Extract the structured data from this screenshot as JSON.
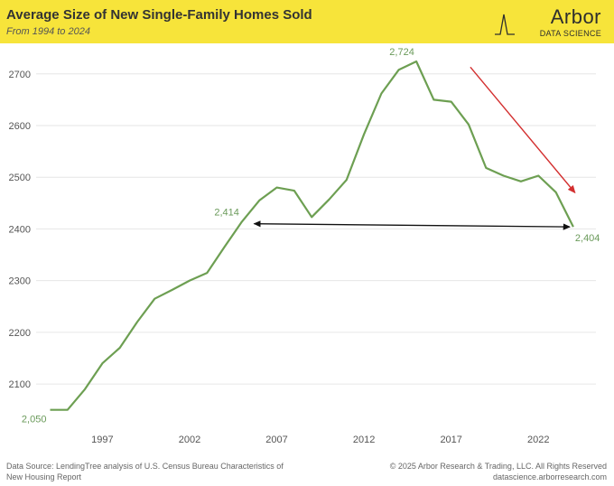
{
  "header": {
    "title": "Average Size of New Single-Family Homes Sold",
    "subtitle": "From 1994 to 2024",
    "logo_word": "Arbor",
    "logo_sub": "DATA SCIENCE"
  },
  "footer": {
    "source_line1": "Data Source: LendingTree analysis of U.S. Census Bureau Characteristics of",
    "source_line2": "New Housing Report",
    "copyright": "© 2025 Arbor Research & Trading, LLC. All Rights Reserved",
    "website": "datascience.arborresearch.com"
  },
  "colors": {
    "banner": "#f7e43a",
    "line": "#6d9f52",
    "trend_arrow": "#d32f2f",
    "range_arrow": "#111111"
  },
  "chart_data": {
    "type": "line",
    "title": "Average Size of New Single-Family Homes Sold",
    "subtitle": "From 1994 to 2024",
    "xlabel": "",
    "ylabel": "",
    "x": [
      1994,
      1995,
      1996,
      1997,
      1998,
      1999,
      2000,
      2001,
      2002,
      2003,
      2004,
      2005,
      2006,
      2007,
      2008,
      2009,
      2010,
      2011,
      2012,
      2013,
      2014,
      2015,
      2016,
      2017,
      2018,
      2019,
      2020,
      2021,
      2022,
      2023,
      2024
    ],
    "series": [
      {
        "values": [
          2050,
          2050,
          2090,
          2140,
          2170,
          2220,
          2265,
          2282,
          2300,
          2315,
          2365,
          2414,
          2455,
          2480,
          2474,
          2423,
          2457,
          2495,
          2583,
          2662,
          2708,
          2724,
          2650,
          2646,
          2602,
          2518,
          2503,
          2492,
          2503,
          2471,
          2404
        ]
      }
    ],
    "xticks": [
      1997,
      2002,
      2007,
      2012,
      2017,
      2022
    ],
    "yticks": [
      2100,
      2200,
      2300,
      2400,
      2500,
      2600,
      2700
    ],
    "xlim": [
      1993.2,
      2025.3
    ],
    "ylim": [
      2025,
      2745
    ],
    "grid": true,
    "data_labels": [
      {
        "x": 1994,
        "y": 2050,
        "text": "2,050",
        "anchor": "end",
        "dx": -4,
        "dy": 14
      },
      {
        "x": 2005,
        "y": 2414,
        "text": "2,414",
        "anchor": "end",
        "dx": -3,
        "dy": -7
      },
      {
        "x": 2015,
        "y": 2724,
        "text": "2,724",
        "anchor": "middle",
        "dx": -16,
        "dy": -7
      },
      {
        "x": 2024,
        "y": 2404,
        "text": "2,404",
        "anchor": "start",
        "dx": 2,
        "dy": 16
      }
    ],
    "annotations": [
      {
        "type": "double-arrow",
        "from": [
          2005.7,
          2410
        ],
        "to": [
          2023.8,
          2404
        ]
      },
      {
        "type": "arrow",
        "from": [
          2018.1,
          2713
        ],
        "to": [
          2024.1,
          2470
        ]
      }
    ]
  }
}
